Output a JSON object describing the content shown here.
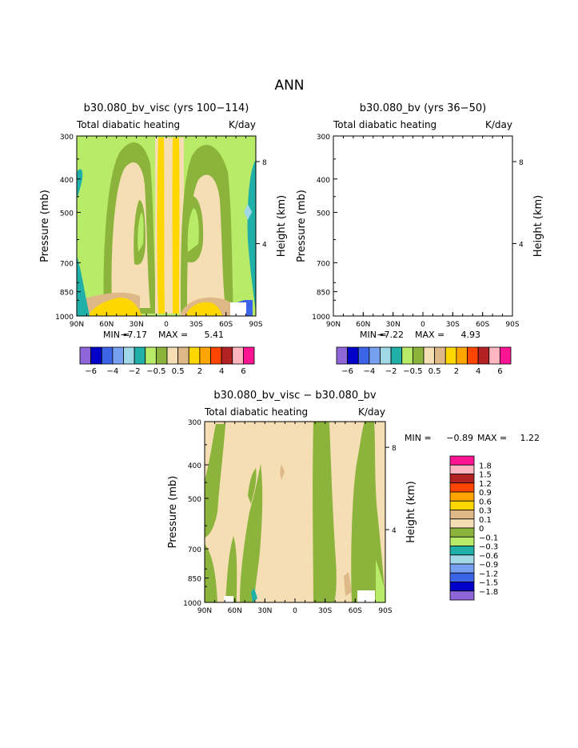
{
  "page_title": "ANN",
  "palettes": {
    "top": [
      "#8e66d9",
      "#0000c8",
      "#3c64e6",
      "#78a0f0",
      "#a0d8e8",
      "#20b0a8",
      "#b8ec68",
      "#8cb43c",
      "#f5deb4",
      "#deb887",
      "#ffd700",
      "#ffa500",
      "#ff4500",
      "#b22222",
      "#ffb6c1",
      "#ff1493"
    ],
    "diff": [
      "#8e66d9",
      "#0000c8",
      "#3c64e6",
      "#78a0f0",
      "#a0d8e8",
      "#20b0a8",
      "#b8ec68",
      "#8cb43c",
      "#f5deb4",
      "#deb887",
      "#ffd700",
      "#ffa500",
      "#ff4500",
      "#b22222",
      "#ffb6c1",
      "#ff1493"
    ]
  },
  "chart_data": [
    {
      "type": "heatmap",
      "title": "b30.080_bv_visc (yrs 100−114)",
      "subtitle_left": "Total diabatic heating",
      "subtitle_right": "K/day",
      "ylabel": "Pressure (mb)",
      "ylabel_right": "Height (km)",
      "x_ticks": [
        "90N",
        "60N",
        "30N",
        "0",
        "30S",
        "60S",
        "90S"
      ],
      "y_ticks": [
        "300",
        "400",
        "500",
        "700",
        "850",
        "1000"
      ],
      "y_right_ticks": [
        "8",
        "4"
      ],
      "ylim": [
        1000,
        300
      ],
      "stats": {
        "min_label": "MIN =",
        "min": "−7.17",
        "max_label": "MAX =",
        "max": "5.41"
      },
      "colorbar_labels": [
        "−6",
        "−4",
        "−2",
        "−0.5",
        "0.5",
        "2",
        "4",
        "6"
      ]
    },
    {
      "type": "heatmap",
      "title": "b30.080_bv (yrs 36−50)",
      "subtitle_left": "Total diabatic heating",
      "subtitle_right": "K/day",
      "ylabel": "Pressure (mb)",
      "ylabel_right": "Height (km)",
      "x_ticks": [
        "90N",
        "60N",
        "30N",
        "0",
        "30S",
        "60S",
        "90S"
      ],
      "y_ticks": [
        "300",
        "400",
        "500",
        "700",
        "850",
        "1000"
      ],
      "y_right_ticks": [
        "8",
        "4"
      ],
      "ylim": [
        1000,
        300
      ],
      "stats": {
        "min_label": "MIN =",
        "min": "−7.22",
        "max_label": "MAX =",
        "max": "4.93"
      },
      "colorbar_labels": [
        "−6",
        "−4",
        "−2",
        "−0.5",
        "0.5",
        "2",
        "4",
        "6"
      ]
    },
    {
      "type": "heatmap",
      "title": "b30.080_bv_visc − b30.080_bv",
      "subtitle_left": "Total diabatic heating",
      "subtitle_right": "K/day",
      "ylabel": "Pressure (mb)",
      "ylabel_right": "Height (km)",
      "x_ticks": [
        "90N",
        "60N",
        "30N",
        "0",
        "30S",
        "60S",
        "90S"
      ],
      "y_ticks": [
        "300",
        "400",
        "500",
        "700",
        "850",
        "1000"
      ],
      "y_right_ticks": [
        "8",
        "4"
      ],
      "ylim": [
        1000,
        300
      ],
      "stats": {
        "min_label": "MIN =",
        "min": "−0.89",
        "max_label": "MAX =",
        "max": "1.22"
      },
      "colorbar_labels": [
        "1.8",
        "1.5",
        "1.2",
        "0.9",
        "0.6",
        "0.3",
        "0.1",
        "0",
        "−0.1",
        "−0.3",
        "−0.6",
        "−0.9",
        "−1.2",
        "−1.5",
        "−1.8"
      ]
    }
  ]
}
